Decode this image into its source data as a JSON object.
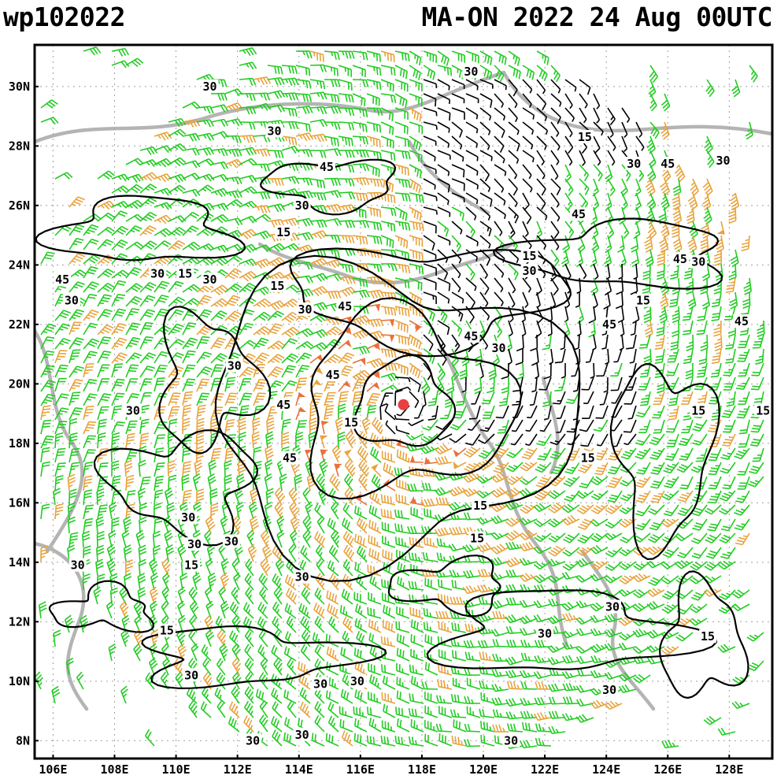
{
  "header": {
    "storm_id": "wp102022",
    "storm_time": "MA-ON 2022 24 Aug 00UTC"
  },
  "map": {
    "lat_labels": [
      "30N",
      "28N",
      "26N",
      "24N",
      "22N",
      "20N",
      "18N",
      "16N",
      "14N",
      "12N",
      "10N",
      "8N"
    ],
    "lon_labels": [
      "106E",
      "108E",
      "110E",
      "112E",
      "114E",
      "116E",
      "118E",
      "120E",
      "122E",
      "124E",
      "126E",
      "128E"
    ],
    "lat_values": [
      30,
      28,
      26,
      24,
      22,
      20,
      18,
      16,
      14,
      12,
      10,
      8
    ],
    "lon_values": [
      106,
      108,
      110,
      112,
      114,
      116,
      118,
      120,
      122,
      124,
      126,
      128
    ],
    "lon_range": [
      105.4,
      129.4
    ],
    "lat_range": [
      7.4,
      31.4
    ],
    "storm_center": {
      "lon": 117.4,
      "lat": 19.3
    },
    "contour_levels": [
      "15",
      "30",
      "45"
    ],
    "contour_labels": [
      {
        "text": "30",
        "lon": 111.1,
        "lat": 30.0
      },
      {
        "text": "30",
        "lon": 113.2,
        "lat": 28.5
      },
      {
        "text": "45",
        "lon": 114.9,
        "lat": 27.3
      },
      {
        "text": "30",
        "lon": 119.6,
        "lat": 30.5
      },
      {
        "text": "15",
        "lon": 123.3,
        "lat": 28.3
      },
      {
        "text": "30",
        "lon": 124.9,
        "lat": 27.4
      },
      {
        "text": "45",
        "lon": 126.0,
        "lat": 27.4
      },
      {
        "text": "30",
        "lon": 127.8,
        "lat": 27.5
      },
      {
        "text": "45",
        "lon": 123.1,
        "lat": 25.7
      },
      {
        "text": "30",
        "lon": 114.1,
        "lat": 26.0
      },
      {
        "text": "15",
        "lon": 113.5,
        "lat": 25.1
      },
      {
        "text": "15",
        "lon": 121.5,
        "lat": 24.3
      },
      {
        "text": "30",
        "lon": 121.5,
        "lat": 23.8
      },
      {
        "text": "45",
        "lon": 126.4,
        "lat": 24.2
      },
      {
        "text": "30",
        "lon": 127.0,
        "lat": 24.1
      },
      {
        "text": "45",
        "lon": 106.3,
        "lat": 23.5
      },
      {
        "text": "30",
        "lon": 109.4,
        "lat": 23.7
      },
      {
        "text": "15",
        "lon": 110.3,
        "lat": 23.7
      },
      {
        "text": "30",
        "lon": 111.1,
        "lat": 23.5
      },
      {
        "text": "15",
        "lon": 113.3,
        "lat": 23.3
      },
      {
        "text": "30",
        "lon": 106.6,
        "lat": 22.8
      },
      {
        "text": "30",
        "lon": 114.2,
        "lat": 22.5
      },
      {
        "text": "45",
        "lon": 115.5,
        "lat": 22.6
      },
      {
        "text": "15",
        "lon": 125.2,
        "lat": 22.8
      },
      {
        "text": "45",
        "lon": 119.6,
        "lat": 21.6
      },
      {
        "text": "45",
        "lon": 124.1,
        "lat": 22.0
      },
      {
        "text": "45",
        "lon": 128.4,
        "lat": 22.1
      },
      {
        "text": "30",
        "lon": 120.5,
        "lat": 21.2
      },
      {
        "text": "30",
        "lon": 111.9,
        "lat": 20.6
      },
      {
        "text": "45",
        "lon": 115.1,
        "lat": 20.3
      },
      {
        "text": "30",
        "lon": 108.6,
        "lat": 19.1
      },
      {
        "text": "45",
        "lon": 113.5,
        "lat": 19.3
      },
      {
        "text": "15",
        "lon": 115.7,
        "lat": 18.7
      },
      {
        "text": "15",
        "lon": 127.0,
        "lat": 19.1
      },
      {
        "text": "15",
        "lon": 129.1,
        "lat": 19.1
      },
      {
        "text": "45",
        "lon": 113.7,
        "lat": 17.5
      },
      {
        "text": "15",
        "lon": 123.4,
        "lat": 17.5
      },
      {
        "text": "15",
        "lon": 119.9,
        "lat": 15.9
      },
      {
        "text": "30",
        "lon": 110.4,
        "lat": 15.5
      },
      {
        "text": "15",
        "lon": 119.8,
        "lat": 14.8
      },
      {
        "text": "30",
        "lon": 111.8,
        "lat": 14.7
      },
      {
        "text": "30",
        "lon": 110.6,
        "lat": 14.6
      },
      {
        "text": "15",
        "lon": 110.5,
        "lat": 13.9
      },
      {
        "text": "30",
        "lon": 106.8,
        "lat": 13.9
      },
      {
        "text": "30",
        "lon": 114.1,
        "lat": 13.5
      },
      {
        "text": "30",
        "lon": 124.2,
        "lat": 12.5
      },
      {
        "text": "30",
        "lon": 122.0,
        "lat": 11.6
      },
      {
        "text": "15",
        "lon": 109.7,
        "lat": 11.7
      },
      {
        "text": "15",
        "lon": 127.3,
        "lat": 11.5
      },
      {
        "text": "30",
        "lon": 110.5,
        "lat": 10.2
      },
      {
        "text": "30",
        "lon": 115.9,
        "lat": 10.0
      },
      {
        "text": "30",
        "lon": 114.7,
        "lat": 9.9
      },
      {
        "text": "30",
        "lon": 124.1,
        "lat": 9.7
      },
      {
        "text": "30",
        "lon": 114.1,
        "lat": 8.2
      },
      {
        "text": "30",
        "lon": 112.5,
        "lat": 8.0
      },
      {
        "text": "30",
        "lon": 120.9,
        "lat": 8.0
      }
    ],
    "colors": {
      "barb_light": "#22cc22",
      "barb_moderate": "#e8a33c",
      "barb_strong": "#e8703a",
      "barb_extreme": "#e83a3a",
      "barb_calm": "#000000",
      "coast": "#b4b4b4",
      "contour": "#000000",
      "grid": "#a0a0a0",
      "storm": "#e84040"
    }
  }
}
